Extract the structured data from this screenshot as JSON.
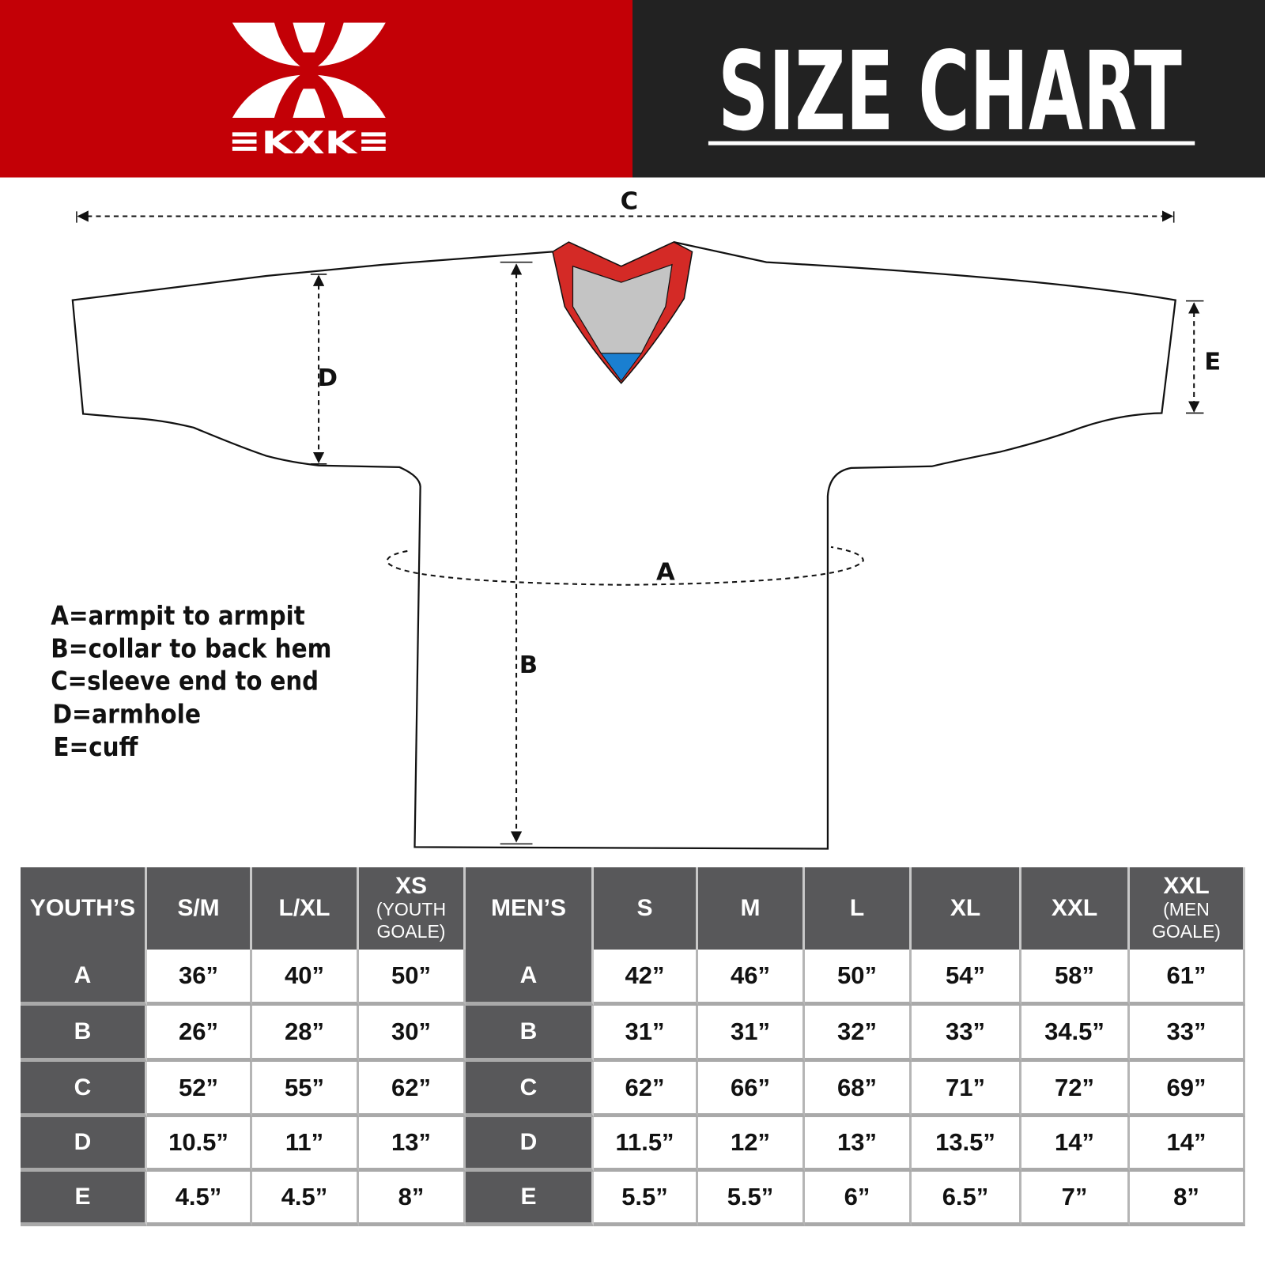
{
  "header": {
    "logo_text": "KXK",
    "title": "SIZE CHART",
    "colors": {
      "left_bg": "#c30006",
      "right_bg": "#222222"
    }
  },
  "diagram": {
    "labels": {
      "a": "A",
      "b": "B",
      "c": "C",
      "d": "D",
      "e": "E"
    },
    "colors": {
      "collar_red": "#d42a26",
      "collar_gray": "#c4c4c4",
      "collar_blue": "#1a7fd0"
    }
  },
  "legend": [
    "A=armpit to armpit",
    "B=collar to back hem",
    "C=sleeve end to end",
    "D=armhole",
    "E=cuff"
  ],
  "table": {
    "youth": {
      "header": "YOUTH’S",
      "sizes": [
        {
          "label": "S/M",
          "sub": ""
        },
        {
          "label": "L/XL",
          "sub": ""
        },
        {
          "label": "XS",
          "sub": "(YOUTH GOALE)"
        }
      ]
    },
    "men": {
      "header": "MEN’S",
      "sizes": [
        {
          "label": "S",
          "sub": ""
        },
        {
          "label": "M",
          "sub": ""
        },
        {
          "label": "L",
          "sub": ""
        },
        {
          "label": "XL",
          "sub": ""
        },
        {
          "label": "XXL",
          "sub": ""
        },
        {
          "label": "XXL",
          "sub": "(MEN GOALE)"
        }
      ]
    },
    "rows": [
      {
        "key": "A",
        "youth": [
          "36”",
          "40”",
          "50”"
        ],
        "men": [
          "42”",
          "46”",
          "50”",
          "54”",
          "58”",
          "61”"
        ]
      },
      {
        "key": "B",
        "youth": [
          "26”",
          "28”",
          "30”"
        ],
        "men": [
          "31”",
          "31”",
          "32”",
          "33”",
          "34.5”",
          "33”"
        ]
      },
      {
        "key": "C",
        "youth": [
          "52”",
          "55”",
          "62”"
        ],
        "men": [
          "62”",
          "66”",
          "68”",
          "71”",
          "72”",
          "69”"
        ]
      },
      {
        "key": "D",
        "youth": [
          "10.5”",
          "11”",
          "13”"
        ],
        "men": [
          "11.5”",
          "12”",
          "13”",
          "13.5”",
          "14”",
          "14”"
        ]
      },
      {
        "key": "E",
        "youth": [
          "4.5”",
          "4.5”",
          "8”"
        ],
        "men": [
          "5.5”",
          "5.5”",
          "6”",
          "6.5”",
          "7”",
          "8”"
        ]
      }
    ]
  }
}
